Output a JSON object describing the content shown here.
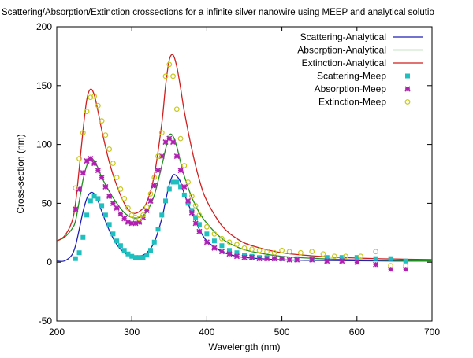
{
  "chart_data": {
    "type": "line",
    "title": "Scattering/Absorption/Extinction crossections for a infinite silver nanowire using MEEP and analytical solutio",
    "xlabel": "Wavelength (nm)",
    "ylabel": "Cross-section (nm)",
    "xlim": [
      200,
      700
    ],
    "ylim": [
      -50,
      200
    ],
    "xticks": [
      200,
      300,
      400,
      500,
      600,
      700
    ],
    "yticks": [
      -50,
      0,
      50,
      100,
      150,
      200
    ],
    "grid": false,
    "legend_position": "top-right",
    "series": [
      {
        "name": "Scattering-Analytical",
        "style": "line",
        "color": "#1f1fb4",
        "x": [
          200,
          210,
          220,
          225,
          230,
          235,
          240,
          245,
          250,
          255,
          260,
          270,
          280,
          290,
          300,
          310,
          320,
          330,
          340,
          345,
          350,
          355,
          360,
          365,
          370,
          380,
          390,
          400,
          420,
          440,
          460,
          500,
          550,
          600,
          650,
          700
        ],
        "y": [
          1,
          1,
          6,
          14,
          28,
          43,
          54,
          59,
          58,
          52,
          43,
          27,
          15,
          8,
          5,
          5,
          8,
          17,
          37,
          52,
          66,
          74,
          73,
          68,
          58,
          42,
          28,
          18,
          9,
          5,
          3.5,
          2,
          1.5,
          1.2,
          1,
          1
        ]
      },
      {
        "name": "Absorption-Analytical",
        "style": "line",
        "color": "#1f8f1f",
        "x": [
          200,
          210,
          220,
          225,
          230,
          235,
          240,
          245,
          250,
          255,
          260,
          270,
          280,
          290,
          300,
          310,
          320,
          330,
          340,
          345,
          350,
          355,
          360,
          365,
          370,
          380,
          390,
          400,
          420,
          440,
          460,
          500,
          550,
          600,
          650,
          700
        ],
        "y": [
          18,
          21,
          28,
          35,
          52,
          70,
          82,
          88,
          86,
          80,
          72,
          60,
          50,
          42,
          38,
          38,
          43,
          57,
          82,
          96,
          108,
          107,
          98,
          85,
          73,
          55,
          42,
          33,
          20,
          13,
          9,
          5,
          3,
          2,
          1.5,
          1
        ]
      },
      {
        "name": "Extinction-Analytical",
        "style": "line",
        "color": "#d01f1f",
        "x": [
          200,
          210,
          220,
          225,
          230,
          235,
          240,
          245,
          250,
          255,
          260,
          270,
          280,
          290,
          300,
          310,
          320,
          330,
          340,
          345,
          350,
          355,
          360,
          365,
          370,
          380,
          390,
          400,
          420,
          440,
          460,
          500,
          550,
          600,
          650,
          700
        ],
        "y": [
          18,
          22,
          34,
          50,
          80,
          112,
          138,
          147,
          142,
          128,
          112,
          85,
          65,
          50,
          42,
          43,
          51,
          74,
          118,
          150,
          172,
          176,
          166,
          148,
          128,
          96,
          70,
          52,
          31,
          20,
          14,
          8,
          5,
          3.5,
          2.7,
          2.2
        ]
      },
      {
        "name": "Scattering-Meep",
        "style": "square",
        "color": "#1fbfbf",
        "x": [
          225,
          230,
          235,
          240,
          245,
          250,
          255,
          260,
          265,
          270,
          275,
          280,
          285,
          290,
          295,
          300,
          305,
          310,
          315,
          320,
          325,
          330,
          335,
          340,
          345,
          350,
          355,
          360,
          365,
          370,
          375,
          380,
          385,
          390,
          400,
          410,
          420,
          430,
          440,
          450,
          460,
          470,
          480,
          490,
          500,
          520,
          540,
          560,
          580,
          600,
          625,
          645,
          665
        ],
        "y": [
          3,
          8,
          21,
          40,
          52,
          56,
          54,
          48,
          40,
          32,
          24,
          18,
          14,
          10,
          7,
          5,
          4,
          4,
          4,
          6,
          10,
          17,
          28,
          40,
          52,
          62,
          68,
          68,
          64,
          57,
          50,
          44,
          38,
          32,
          24,
          18,
          14,
          10,
          8,
          6,
          5,
          4,
          4,
          3,
          3,
          3,
          3,
          4,
          4,
          4,
          3,
          3,
          1
        ]
      },
      {
        "name": "Absorption-Meep",
        "style": "star",
        "color": "#b01fb0",
        "x": [
          225,
          230,
          235,
          240,
          245,
          250,
          255,
          260,
          265,
          270,
          275,
          280,
          285,
          290,
          295,
          300,
          305,
          310,
          315,
          320,
          325,
          330,
          335,
          340,
          345,
          350,
          355,
          360,
          365,
          370,
          375,
          380,
          385,
          390,
          400,
          410,
          420,
          430,
          440,
          450,
          460,
          470,
          480,
          490,
          500,
          510,
          520,
          540,
          560,
          580,
          600,
          625,
          645,
          665
        ],
        "y": [
          45,
          62,
          76,
          86,
          88,
          84,
          78,
          72,
          64,
          56,
          50,
          46,
          41,
          37,
          34,
          33,
          33,
          34,
          38,
          44,
          52,
          65,
          78,
          90,
          102,
          105,
          102,
          90,
          78,
          64,
          52,
          42,
          33,
          26,
          17,
          12,
          9,
          7,
          5,
          4,
          4,
          3,
          3,
          3,
          3,
          2,
          2,
          2,
          1,
          1,
          0,
          -2,
          -6,
          -6
        ]
      },
      {
        "name": "Extinction-Meep",
        "style": "circle",
        "color": "#c8c81f",
        "x": [
          225,
          230,
          235,
          240,
          245,
          250,
          255,
          260,
          265,
          270,
          275,
          280,
          285,
          290,
          295,
          300,
          305,
          310,
          315,
          320,
          325,
          330,
          335,
          340,
          345,
          350,
          355,
          360,
          365,
          370,
          375,
          380,
          385,
          390,
          400,
          410,
          420,
          430,
          440,
          450,
          460,
          470,
          480,
          490,
          500,
          510,
          525,
          540,
          555,
          570,
          585,
          605,
          625,
          645,
          665
        ],
        "y": [
          63,
          88,
          110,
          128,
          140,
          141,
          133,
          120,
          108,
          96,
          84,
          72,
          62,
          54,
          46,
          40,
          38,
          37,
          40,
          47,
          58,
          72,
          90,
          110,
          158,
          168,
          158,
          130,
          105,
          82,
          68,
          56,
          48,
          40,
          30,
          24,
          20,
          17,
          15,
          12,
          11,
          10,
          9,
          8,
          10,
          9,
          8,
          9,
          7,
          5,
          5,
          5,
          9,
          -3,
          -3
        ]
      }
    ]
  }
}
